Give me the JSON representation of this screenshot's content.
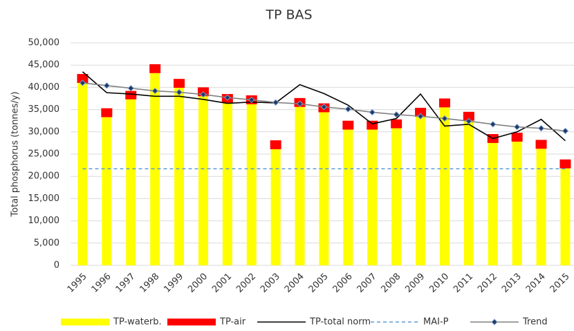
{
  "chart_data": {
    "type": "bar",
    "title": "TP BAS",
    "y_label": "Total phosphorus (tonnes/y)",
    "categories": [
      "1995",
      "1996",
      "1997",
      "1998",
      "1999",
      "2000",
      "2001",
      "2002",
      "2003",
      "2004",
      "2005",
      "2006",
      "2007",
      "2008",
      "2009",
      "2010",
      "2011",
      "2012",
      "2013",
      "2014",
      "2015"
    ],
    "ylim": [
      0,
      50000
    ],
    "yticks": [
      0,
      {
        "value": 5000,
        "label": "5,000"
      },
      {
        "value": 10000,
        "label": "10,000"
      },
      {
        "value": 15000,
        "label": "15,000"
      },
      {
        "value": 20000,
        "label": "20,000"
      },
      {
        "value": 25000,
        "label": "25,000"
      },
      {
        "value": 30000,
        "label": "30,000"
      },
      {
        "value": 35000,
        "label": "35,000"
      },
      {
        "value": 40000,
        "label": "40,000"
      },
      {
        "value": 45000,
        "label": "45,000"
      },
      {
        "value": 50000,
        "label": "50,000"
      }
    ],
    "grid": true,
    "legend": "bottom",
    "series": [
      {
        "name": "TP-waterb.",
        "kind": "bar",
        "color": "#ffff00",
        "values": [
          41000,
          33300,
          37300,
          43200,
          39900,
          38000,
          36500,
          36200,
          26100,
          35600,
          34400,
          30500,
          30500,
          30800,
          33400,
          35500,
          32500,
          27500,
          27800,
          26200,
          21800
        ]
      },
      {
        "name": "TP-air",
        "kind": "stack",
        "color": "#ff0000",
        "values": [
          2000,
          2000,
          1900,
          2000,
          2000,
          2000,
          2000,
          2000,
          2000,
          2000,
          2000,
          2000,
          2000,
          2000,
          2000,
          2000,
          2000,
          2000,
          2000,
          2000,
          2000
        ]
      },
      {
        "name": "TP-total norm",
        "kind": "line",
        "color": "#000000",
        "values": [
          43500,
          38800,
          38500,
          38000,
          38000,
          37300,
          36400,
          36700,
          36500,
          40600,
          38600,
          36000,
          31800,
          33000,
          38500,
          31300,
          31700,
          28500,
          30000,
          32800,
          28000
        ]
      },
      {
        "name": "MAI-P",
        "kind": "line",
        "dashed": true,
        "color": "#5b9bd5",
        "values": [
          21700,
          21700,
          21700,
          21700,
          21700,
          21700,
          21700,
          21700,
          21700,
          21700,
          21700,
          21700,
          21700,
          21700,
          21700,
          21700,
          21700,
          21700,
          21700,
          21700,
          21700
        ]
      },
      {
        "name": "Trend",
        "kind": "line",
        "marker": true,
        "color": "#808080",
        "values": [
          41000,
          40400,
          39800,
          39200,
          38900,
          38400,
          37700,
          37200,
          36600,
          36300,
          35600,
          35100,
          34400,
          33900,
          33500,
          33000,
          32400,
          31700,
          31100,
          30800,
          30200
        ]
      }
    ]
  }
}
